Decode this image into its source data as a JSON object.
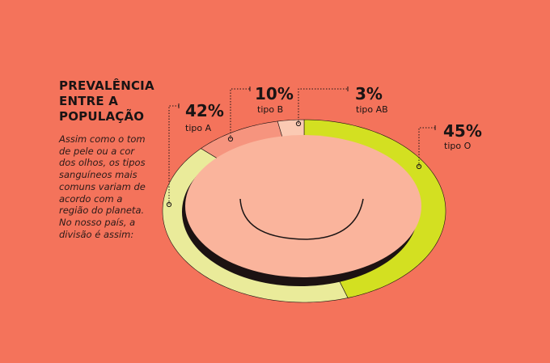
{
  "text": {
    "title": "PREVALÊNCIA ENTRE A POPULAÇÃO",
    "body": "Assim como o tom de pele ou a cor dos olhos, os tipos sanguíneos mais comuns variam de acordo com a região do planeta. No nosso país, a divisão é assim:"
  },
  "colors": {
    "background": "#f4735b",
    "tipo_a": "#eaeb9a",
    "tipo_b": "#f6947e",
    "tipo_ab": "#fbcab3",
    "tipo_o": "#d3e021",
    "inner_face": "#fab49c",
    "shadow": "#1c1212"
  },
  "chart_data": {
    "type": "pie",
    "categories": [
      "tipo O",
      "tipo A",
      "tipo B",
      "tipo AB"
    ],
    "values": [
      45,
      42,
      10,
      3
    ],
    "labels": [
      "45%",
      "42%",
      "10%",
      "3%"
    ],
    "title": "PREVALÊNCIA ENTRE A POPULAÇÃO"
  }
}
